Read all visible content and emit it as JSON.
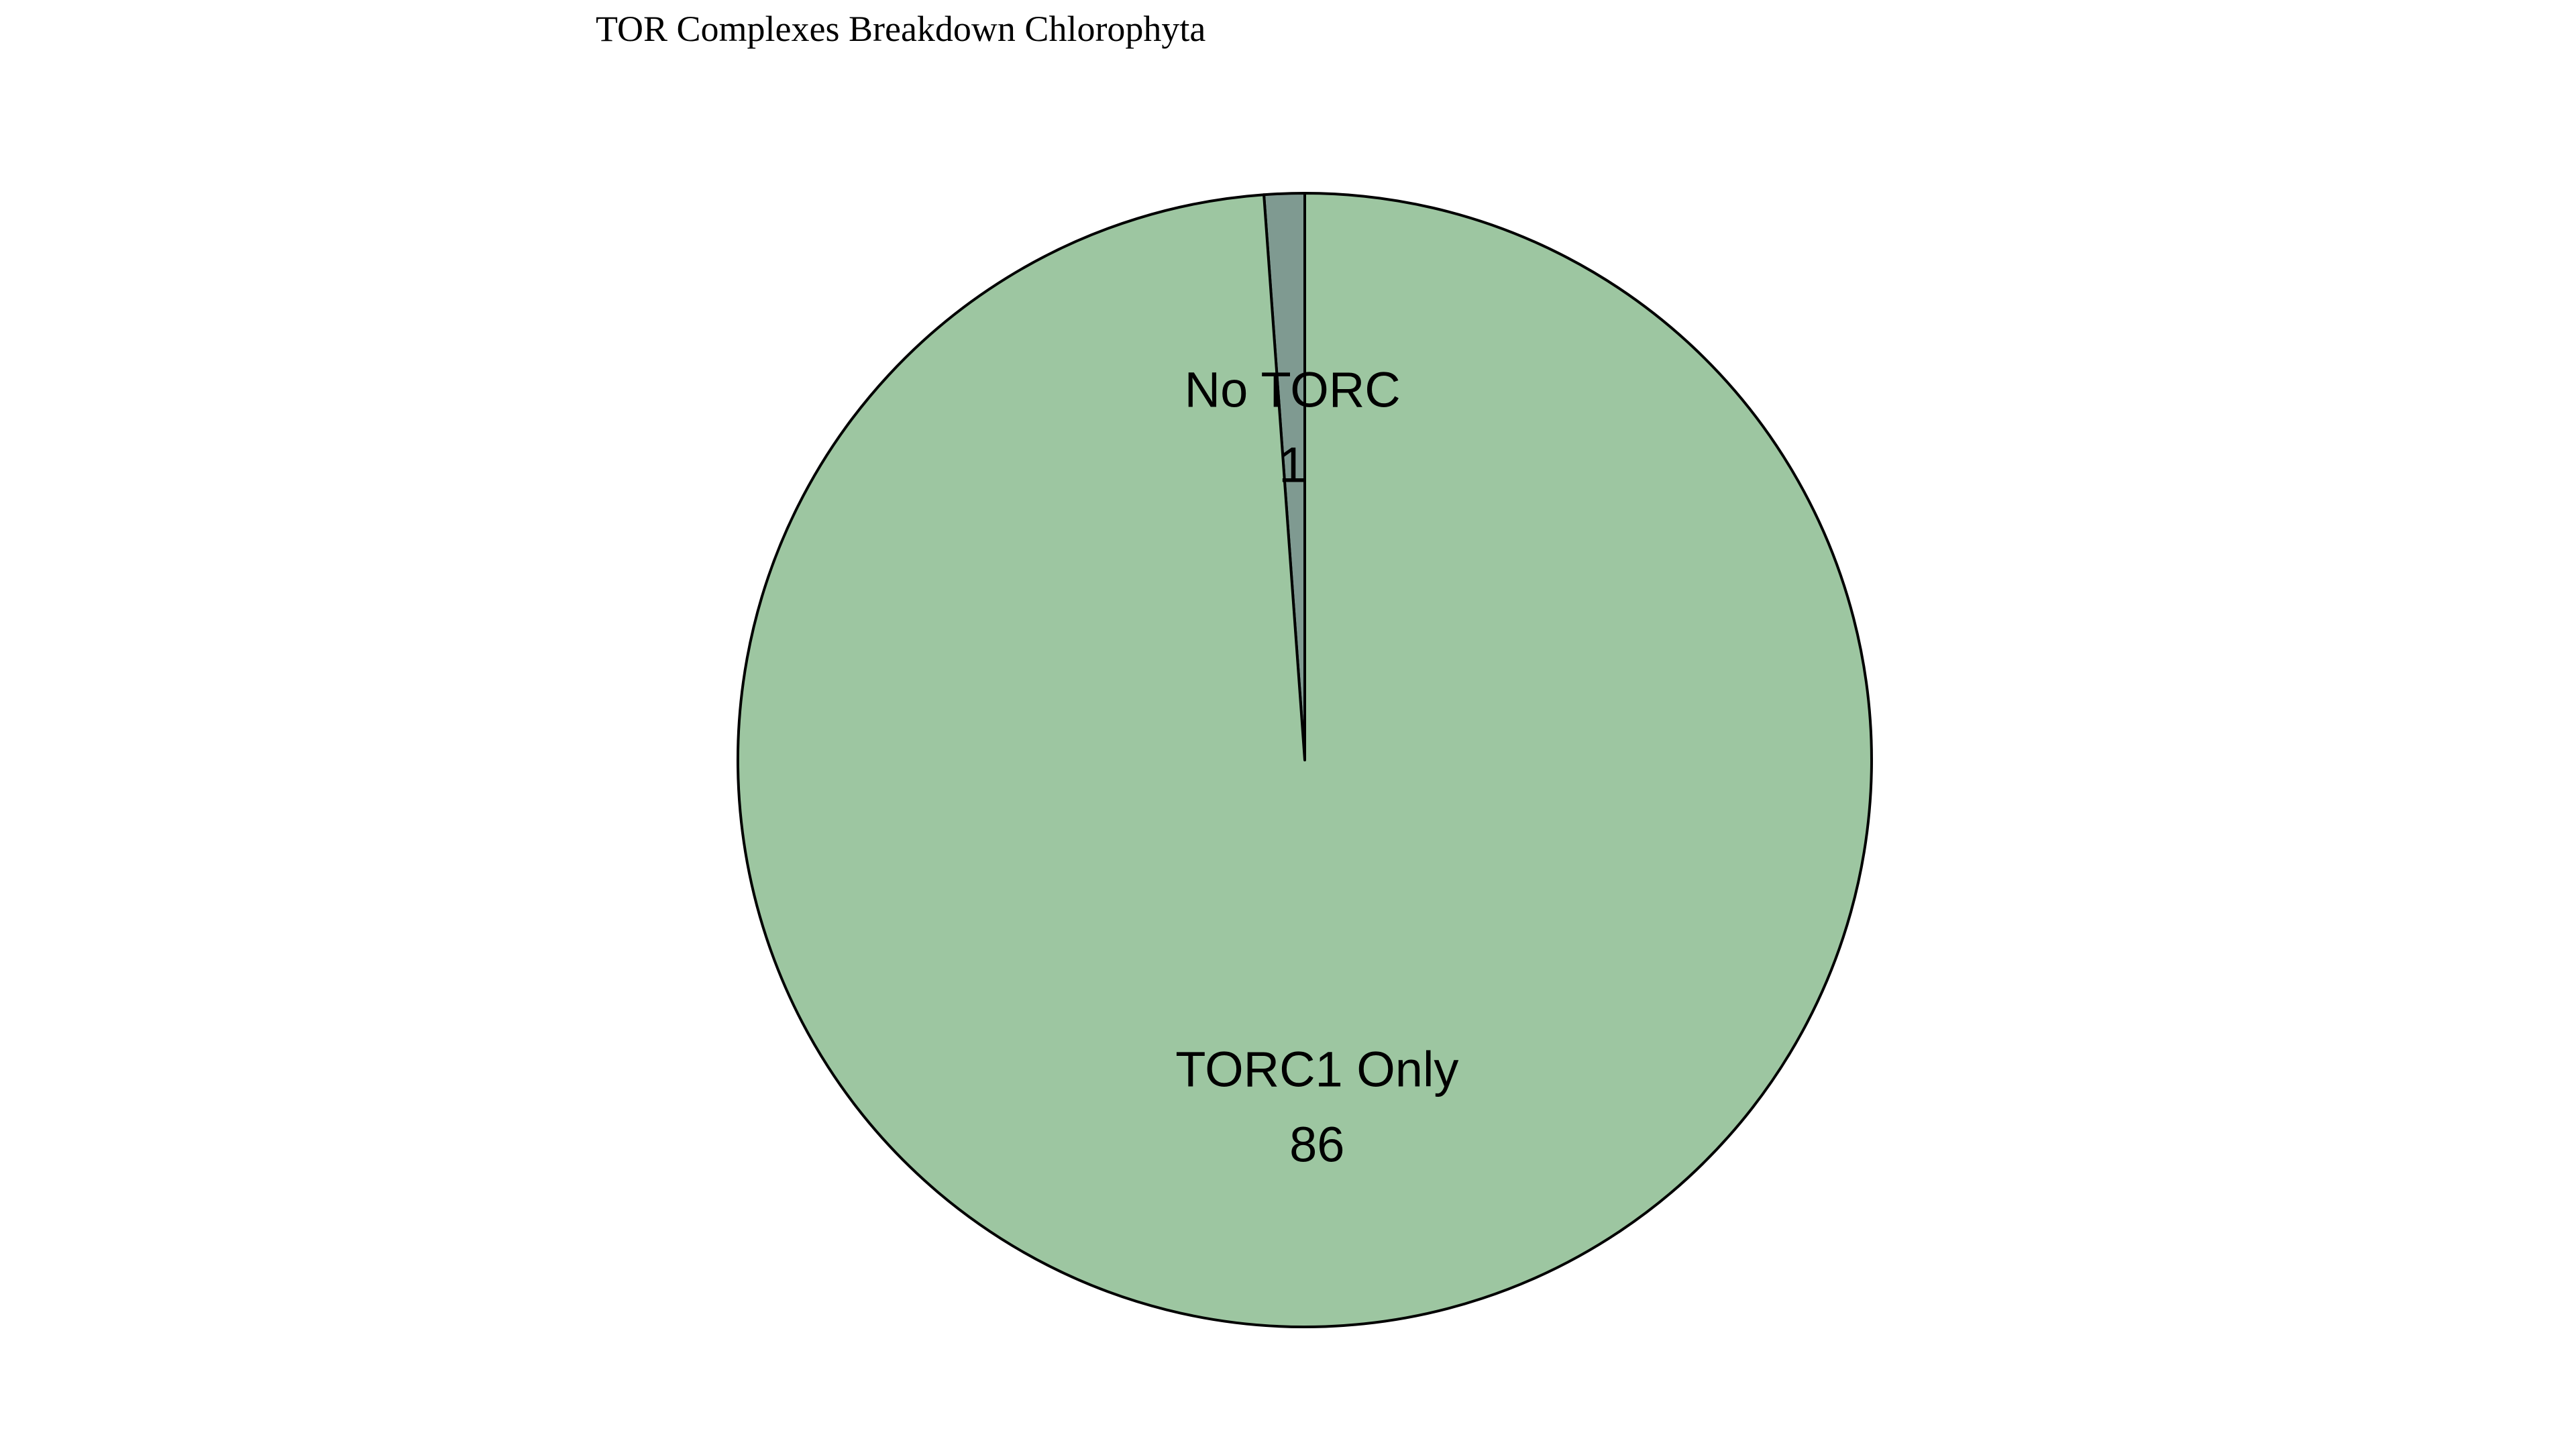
{
  "chart_data": {
    "type": "pie",
    "title": "TOR Complexes Breakdown Chlorophyta",
    "slices": [
      {
        "label": "No TORC",
        "value": 1,
        "value_label": "1",
        "color": "#7f9a91"
      },
      {
        "label": "TORC1 Only",
        "value": 86,
        "value_label": "86",
        "color": "#9dc6a1"
      }
    ],
    "start_angle_deg": 90,
    "direction": "counterclockwise",
    "edge_color": "#000000",
    "legend": "none"
  }
}
